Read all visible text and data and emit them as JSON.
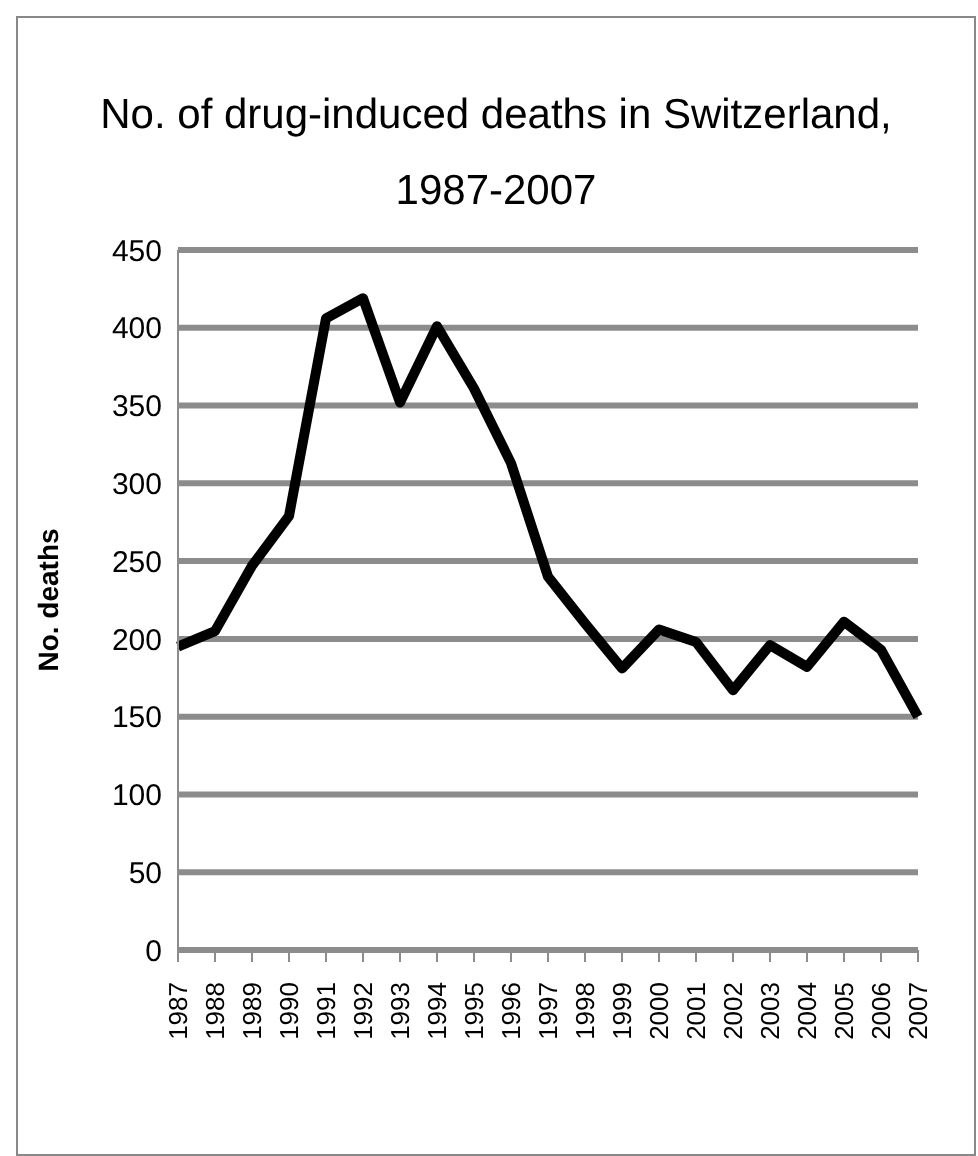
{
  "chart_data": {
    "type": "line",
    "title": "No. of drug-induced deaths in Switzerland, 1987-2007",
    "ylabel": "No. deaths",
    "categories": [
      "1987",
      "1988",
      "1989",
      "1990",
      "1991",
      "1992",
      "1993",
      "1994",
      "1995",
      "1996",
      "1997",
      "1998",
      "1999",
      "2000",
      "2001",
      "2002",
      "2003",
      "2004",
      "2005",
      "2006",
      "2007"
    ],
    "series": [
      {
        "color": "#000000",
        "values": [
          195,
          205,
          247,
          279,
          406,
          419,
          352,
          401,
          361,
          313,
          240,
          210,
          181,
          206,
          198,
          167,
          196,
          182,
          211,
          193,
          150
        ]
      }
    ],
    "ylim": [
      0,
      450
    ],
    "yticks": [
      0,
      50,
      100,
      150,
      200,
      250,
      300,
      350,
      400,
      450
    ],
    "grid": "y",
    "marker": "none",
    "line_style": "solid"
  }
}
